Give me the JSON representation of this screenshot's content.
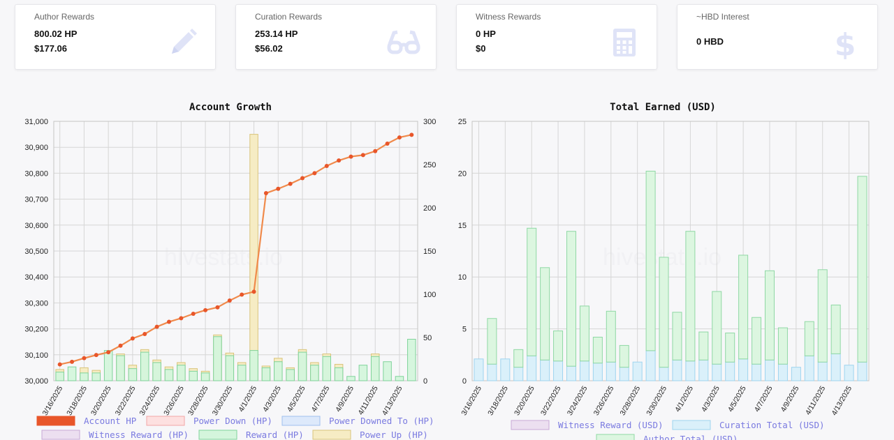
{
  "cards": [
    {
      "title": "Author Rewards",
      "line1": "800.02 HP",
      "line2": "$177.06",
      "icon": "pencil-icon"
    },
    {
      "title": "Curation Rewards",
      "line1": "253.14 HP",
      "line2": "$56.02",
      "icon": "glasses-icon"
    },
    {
      "title": "Witness Rewards",
      "line1": "0 HP",
      "line2": "$0",
      "icon": "calculator-icon"
    },
    {
      "title": "~HBD Interest",
      "line1": "0 HBD",
      "line2": "",
      "icon": "dollar-icon"
    }
  ],
  "watermark": "hivestats.io",
  "colors": {
    "account_hp": "#e8562a",
    "reward_fill": "#d4f5dc",
    "reward_stroke": "#7fd39a",
    "powerup_fill": "#f6ecc4",
    "powerup_stroke": "#d9c47a",
    "curation_fill": "#daf0fa",
    "curation_stroke": "#9fd4ef",
    "author_fill": "#dcf6e0",
    "author_stroke": "#8fd8a4",
    "legend_text": "#7a7ae0"
  },
  "charts": {
    "growth": {
      "title": "Account Growth",
      "legend": [
        "Account HP",
        "Power Down (HP)",
        "Power Downed To (HP)",
        "Witness Reward (HP)",
        "Reward (HP)",
        "Power Up (HP)"
      ]
    },
    "earned": {
      "title": "Total Earned (USD)",
      "legend": [
        "Witness Reward (USD)",
        "Curation Total (USD)",
        "Author Total (USD)"
      ]
    }
  },
  "chart_data": [
    {
      "type": "line",
      "title": "Account Growth",
      "categories": [
        "3/16/2025",
        "3/17/2025",
        "3/18/2025",
        "3/19/2025",
        "3/20/2025",
        "3/21/2025",
        "3/22/2025",
        "3/23/2025",
        "3/24/2025",
        "3/25/2025",
        "3/26/2025",
        "3/27/2025",
        "3/28/2025",
        "3/29/2025",
        "3/30/2025",
        "3/31/2025",
        "4/1/2025",
        "4/2/2025",
        "4/3/2025",
        "4/4/2025",
        "4/5/2025",
        "4/6/2025",
        "4/7/2025",
        "4/8/2025",
        "4/9/2025",
        "4/10/2025",
        "4/11/2025",
        "4/12/2025",
        "4/13/2025",
        "4/14/2025"
      ],
      "tick_labels": [
        "3/16/2025",
        "3/18/2025",
        "3/20/2025",
        "3/22/2025",
        "3/24/2025",
        "3/26/2025",
        "3/28/2025",
        "3/30/2025",
        "4/1/2025",
        "4/3/2025",
        "4/5/2025",
        "4/7/2025",
        "4/9/2025",
        "4/11/2025",
        "4/13/2025"
      ],
      "y_left": {
        "min": 30000,
        "max": 31000,
        "step": 100
      },
      "y_right": {
        "min": 0,
        "max": 300,
        "step": 50
      },
      "series": [
        {
          "name": "Account HP",
          "axis": "left",
          "kind": "line",
          "values": [
            30063,
            30073,
            30087,
            30099,
            30110,
            30135,
            30163,
            30180,
            30208,
            30227,
            30241,
            30258,
            30272,
            30283,
            30309,
            30332,
            30343,
            30723,
            30740,
            30759,
            30781,
            30800,
            30828,
            30849,
            30864,
            30870,
            30885,
            30914,
            30938,
            30948
          ]
        },
        {
          "name": "Reward (HP)",
          "axis": "right",
          "kind": "bar",
          "values": [
            10,
            16,
            9,
            9,
            35,
            29,
            14,
            33,
            21,
            13,
            18,
            11,
            9,
            51,
            29,
            18,
            35,
            15,
            22,
            13,
            33,
            18,
            28,
            15,
            5,
            18,
            28,
            22,
            5,
            48
          ]
        },
        {
          "name": "Power Up (HP)",
          "axis": "right",
          "kind": "bar",
          "values": [
            13,
            0,
            15,
            12,
            0,
            31,
            18,
            36,
            24,
            16,
            21,
            14,
            11,
            53,
            32,
            21,
            285,
            17,
            26,
            15,
            36,
            21,
            31,
            19,
            0,
            0,
            31,
            0,
            0,
            0
          ]
        },
        {
          "name": "Power Down (HP)",
          "axis": "right",
          "kind": "bar",
          "values": [
            0,
            0,
            0,
            0,
            0,
            0,
            0,
            0,
            0,
            0,
            0,
            0,
            0,
            0,
            0,
            0,
            0,
            0,
            0,
            0,
            0,
            0,
            0,
            0,
            0,
            0,
            0,
            0,
            0,
            0
          ]
        },
        {
          "name": "Power Downed To (HP)",
          "axis": "right",
          "kind": "bar",
          "values": [
            0,
            0,
            0,
            0,
            0,
            0,
            0,
            0,
            0,
            0,
            0,
            0,
            0,
            0,
            0,
            0,
            0,
            0,
            0,
            0,
            0,
            0,
            0,
            0,
            0,
            0,
            0,
            0,
            0,
            0
          ]
        },
        {
          "name": "Witness Reward (HP)",
          "axis": "right",
          "kind": "bar",
          "values": [
            0,
            0,
            0,
            0,
            0,
            0,
            0,
            0,
            0,
            0,
            0,
            0,
            0,
            0,
            0,
            0,
            0,
            0,
            0,
            0,
            0,
            0,
            0,
            0,
            0,
            0,
            0,
            0,
            0,
            0
          ]
        }
      ],
      "grid": true,
      "legend": "bottom"
    },
    {
      "type": "bar",
      "title": "Total Earned (USD)",
      "categories": [
        "3/16/2025",
        "3/17/2025",
        "3/18/2025",
        "3/19/2025",
        "3/20/2025",
        "3/21/2025",
        "3/22/2025",
        "3/23/2025",
        "3/24/2025",
        "3/25/2025",
        "3/26/2025",
        "3/27/2025",
        "3/28/2025",
        "3/29/2025",
        "3/30/2025",
        "3/31/2025",
        "4/1/2025",
        "4/2/2025",
        "4/3/2025",
        "4/4/2025",
        "4/5/2025",
        "4/6/2025",
        "4/7/2025",
        "4/8/2025",
        "4/9/2025",
        "4/10/2025",
        "4/11/2025",
        "4/12/2025",
        "4/13/2025",
        "4/14/2025"
      ],
      "tick_labels": [
        "3/16/2025",
        "3/18/2025",
        "3/20/2025",
        "3/22/2025",
        "3/24/2025",
        "3/26/2025",
        "3/28/2025",
        "3/30/2025",
        "4/1/2025",
        "4/3/2025",
        "4/5/2025",
        "4/7/2025",
        "4/9/2025",
        "4/11/2025",
        "4/13/2025"
      ],
      "ylim": [
        0,
        25
      ],
      "y_step": 5,
      "stacked": true,
      "series": [
        {
          "name": "Witness Reward (USD)",
          "values": [
            0,
            0,
            0,
            0,
            0,
            0,
            0,
            0,
            0,
            0,
            0,
            0,
            0,
            0,
            0,
            0,
            0,
            0,
            0,
            0,
            0,
            0,
            0,
            0,
            0,
            0,
            0,
            0,
            0,
            0
          ]
        },
        {
          "name": "Curation Total (USD)",
          "values": [
            2.1,
            1.6,
            2.1,
            1.3,
            2.4,
            2.0,
            1.9,
            1.4,
            1.9,
            1.7,
            1.8,
            1.3,
            1.8,
            2.9,
            1.3,
            2.0,
            1.9,
            2.0,
            1.6,
            1.8,
            2.1,
            1.6,
            2.0,
            1.6,
            1.3,
            2.4,
            1.8,
            2.6,
            1.5,
            1.8
          ]
        },
        {
          "name": "Author Total (USD)",
          "values": [
            0,
            4.4,
            0,
            1.7,
            12.3,
            8.9,
            2.9,
            13.0,
            5.3,
            2.5,
            4.9,
            2.1,
            0,
            17.3,
            10.6,
            4.6,
            12.5,
            2.7,
            7.0,
            2.8,
            10.0,
            4.5,
            8.6,
            3.5,
            0,
            3.3,
            8.9,
            4.7,
            0,
            17.9
          ]
        }
      ],
      "grid": true,
      "legend": "bottom"
    }
  ]
}
